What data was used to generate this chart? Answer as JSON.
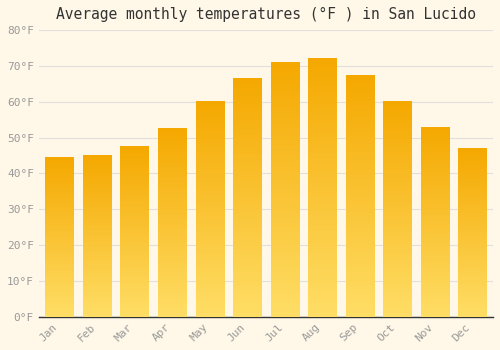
{
  "title": "Average monthly temperatures (°F ) in San Lucido",
  "months": [
    "Jan",
    "Feb",
    "Mar",
    "Apr",
    "May",
    "Jun",
    "Jul",
    "Aug",
    "Sep",
    "Oct",
    "Nov",
    "Dec"
  ],
  "values": [
    44.5,
    45.0,
    47.5,
    52.5,
    60.0,
    66.5,
    71.0,
    72.0,
    67.5,
    60.0,
    53.0,
    47.0
  ],
  "bar_color_top": "#F5A800",
  "bar_color_bottom": "#FFD966",
  "ylim": [
    0,
    80
  ],
  "ytick_step": 10,
  "background_color": "#FFF8E8",
  "grid_color": "#E0E0E0",
  "title_fontsize": 10.5,
  "tick_fontsize": 8,
  "font_family": "monospace",
  "bar_width": 0.75
}
